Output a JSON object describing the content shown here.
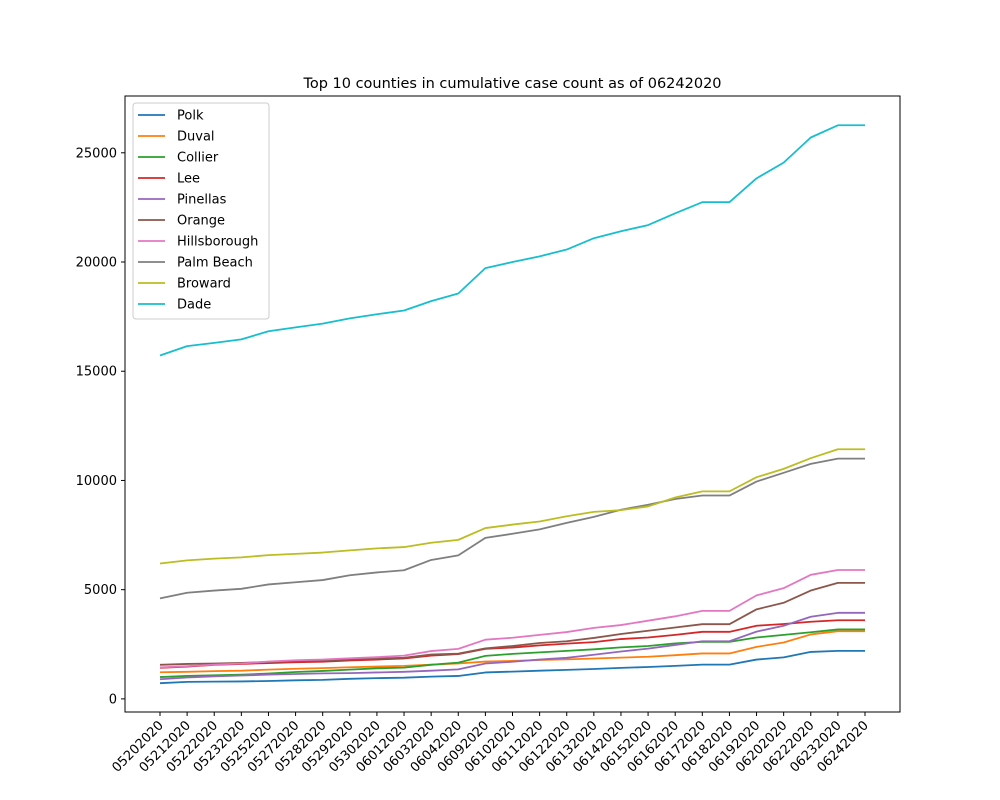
{
  "chart_data": {
    "type": "line",
    "title": "Top 10 counties in cumulative case count as of 06242020",
    "xlabel": "",
    "ylabel": "",
    "categories": [
      "05202020",
      "05212020",
      "05222020",
      "05232020",
      "05252020",
      "05272020",
      "05282020",
      "05292020",
      "05302020",
      "06012020",
      "06032020",
      "06042020",
      "06092020",
      "06102020",
      "06112020",
      "06122020",
      "06132020",
      "06142020",
      "06152020",
      "06162020",
      "06172020",
      "06182020",
      "06192020",
      "06202020",
      "06222020",
      "06232020",
      "06242020"
    ],
    "y_ticks": [
      0,
      5000,
      10000,
      15000,
      20000,
      25000
    ],
    "ylim": [
      -600,
      27600
    ],
    "grid": false,
    "legend_position": "upper left",
    "series": [
      {
        "name": "Polk",
        "color": "#1f77b4",
        "values": [
          720,
          780,
          790,
          800,
          820,
          850,
          870,
          920,
          950,
          970,
          1020,
          1050,
          1210,
          1250,
          1290,
          1330,
          1370,
          1420,
          1460,
          1510,
          1570,
          1570,
          1800,
          1900,
          2150,
          2200,
          2200
        ]
      },
      {
        "name": "Duval",
        "color": "#ff7f0e",
        "values": [
          1220,
          1240,
          1270,
          1290,
          1340,
          1380,
          1410,
          1450,
          1480,
          1510,
          1570,
          1620,
          1710,
          1740,
          1780,
          1810,
          1850,
          1890,
          1930,
          2000,
          2080,
          2080,
          2380,
          2580,
          2950,
          3100,
          3100
        ]
      },
      {
        "name": "Collier",
        "color": "#2ca02c",
        "values": [
          1000,
          1050,
          1080,
          1110,
          1160,
          1230,
          1280,
          1340,
          1400,
          1430,
          1560,
          1660,
          1970,
          2060,
          2130,
          2200,
          2270,
          2360,
          2420,
          2540,
          2610,
          2610,
          2810,
          2930,
          3050,
          3180,
          3180
        ]
      },
      {
        "name": "Lee",
        "color": "#d62728",
        "values": [
          1420,
          1480,
          1560,
          1600,
          1640,
          1680,
          1700,
          1760,
          1800,
          1850,
          1980,
          2050,
          2290,
          2350,
          2450,
          2530,
          2600,
          2740,
          2810,
          2930,
          3070,
          3070,
          3350,
          3430,
          3530,
          3600,
          3600
        ]
      },
      {
        "name": "Pinellas",
        "color": "#9467bd",
        "values": [
          900,
          980,
          1030,
          1070,
          1110,
          1140,
          1170,
          1180,
          1210,
          1240,
          1290,
          1350,
          1620,
          1700,
          1800,
          1880,
          2020,
          2170,
          2300,
          2470,
          2640,
          2640,
          3080,
          3350,
          3760,
          3940,
          3940
        ]
      },
      {
        "name": "Orange",
        "color": "#8c564b",
        "values": [
          1560,
          1600,
          1620,
          1650,
          1690,
          1730,
          1760,
          1800,
          1850,
          1880,
          2030,
          2070,
          2310,
          2420,
          2560,
          2640,
          2790,
          2970,
          3120,
          3270,
          3420,
          3420,
          4100,
          4400,
          4960,
          5310,
          5310
        ]
      },
      {
        "name": "Hillsborough",
        "color": "#e377c2",
        "values": [
          1440,
          1500,
          1570,
          1620,
          1710,
          1770,
          1800,
          1860,
          1910,
          1980,
          2190,
          2290,
          2710,
          2800,
          2930,
          3060,
          3250,
          3380,
          3580,
          3780,
          4030,
          4030,
          4740,
          5070,
          5680,
          5900,
          5900
        ]
      },
      {
        "name": "Palm Beach",
        "color": "#7f7f7f",
        "values": [
          4600,
          4860,
          4960,
          5040,
          5240,
          5340,
          5440,
          5660,
          5790,
          5890,
          6360,
          6570,
          7370,
          7560,
          7760,
          8060,
          8330,
          8660,
          8890,
          9150,
          9310,
          9310,
          9950,
          10350,
          10760,
          11000,
          11000
        ]
      },
      {
        "name": "Broward",
        "color": "#bcbd22",
        "values": [
          6200,
          6340,
          6420,
          6480,
          6580,
          6640,
          6700,
          6800,
          6890,
          6950,
          7150,
          7280,
          7820,
          7980,
          8120,
          8360,
          8560,
          8640,
          8810,
          9220,
          9500,
          9500,
          10150,
          10530,
          11020,
          11430,
          11430
        ]
      },
      {
        "name": "Dade",
        "color": "#17becf",
        "values": [
          15720,
          16150,
          16300,
          16460,
          16830,
          17010,
          17180,
          17420,
          17610,
          17780,
          18210,
          18560,
          19720,
          20000,
          20260,
          20570,
          21090,
          21410,
          21690,
          22230,
          22740,
          22740,
          23830,
          24550,
          25700,
          26260,
          26260
        ]
      }
    ]
  }
}
